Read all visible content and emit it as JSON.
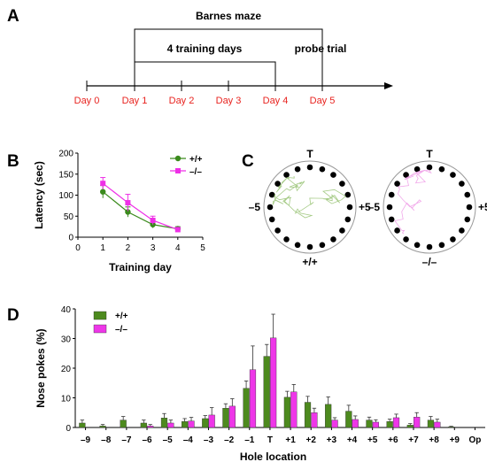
{
  "panels": [
    "A",
    "B",
    "C",
    "D"
  ],
  "timeline": {
    "days": [
      "Day 0",
      "Day 1",
      "Day 2",
      "Day 3",
      "Day 4",
      "Day 5"
    ],
    "brackets": {
      "barnes": "Barnes maze",
      "training": "4 training days",
      "probe": "probe trial"
    }
  },
  "maze": {
    "target": "T",
    "minus5": "–5",
    "plus5": "+5",
    "labels": [
      "+/+",
      "–/–"
    ],
    "colors": [
      "#9cc57a",
      "#f0a0e8"
    ]
  },
  "chart_data": [
    {
      "type": "line",
      "xlabel": "Training day",
      "ylabel": "Latency (sec)",
      "xlim": [
        0,
        5
      ],
      "ylim": [
        0,
        200
      ],
      "xticks": [
        0,
        1,
        2,
        3,
        4,
        5
      ],
      "yticks": [
        0,
        50,
        100,
        150,
        200
      ],
      "legend_position": "top-right",
      "x": [
        1,
        2,
        3,
        4
      ],
      "series": [
        {
          "name": "+/+",
          "color": "#3a8a1c",
          "marker": "circle",
          "values": [
            108,
            60,
            30,
            20
          ],
          "errors": [
            15,
            12,
            8,
            5
          ]
        },
        {
          "name": "–/–",
          "color": "#ee2fe6",
          "marker": "square",
          "values": [
            128,
            82,
            40,
            18
          ],
          "errors": [
            14,
            20,
            10,
            4
          ]
        }
      ]
    },
    {
      "type": "bar",
      "xlabel": "Hole location",
      "ylabel": "Nose pokes (%)",
      "ylim": [
        0,
        40
      ],
      "yticks": [
        0,
        10,
        20,
        30,
        40
      ],
      "legend_position": "top-left",
      "categories": [
        "–9",
        "–8",
        "–7",
        "–6",
        "–5",
        "–4",
        "–3",
        "–2",
        "–1",
        "T",
        "+1",
        "+2",
        "+3",
        "+4",
        "+5",
        "+6",
        "+7",
        "+8",
        "+9",
        "Op"
      ],
      "series": [
        {
          "name": "+/+",
          "color": "#4d8a1e",
          "values": [
            1.5,
            0.5,
            2.5,
            1.5,
            3.2,
            2.0,
            3.0,
            6.5,
            13.2,
            24.0,
            10.2,
            8.5,
            7.8,
            5.5,
            2.5,
            2.0,
            0.8,
            2.5,
            0.2,
            0
          ],
          "errors": [
            1,
            0.5,
            1.2,
            1,
            1.5,
            1,
            1,
            1.5,
            2.5,
            4,
            2,
            2,
            2.5,
            2,
            1,
            0.8,
            0.5,
            1.2,
            0.2,
            0
          ]
        },
        {
          "name": "–/–",
          "color": "#ee36e8",
          "values": [
            0,
            0,
            0,
            0.5,
            1.5,
            2.2,
            4.2,
            7.2,
            19.5,
            30.2,
            12.0,
            5.0,
            2.5,
            2.7,
            1.8,
            3.3,
            3.5,
            1.8,
            0,
            0
          ],
          "errors": [
            0,
            0,
            0,
            0.5,
            1,
            1.2,
            2.5,
            2.5,
            8,
            8,
            2.5,
            1.5,
            0.8,
            1.2,
            0.8,
            1.2,
            1.5,
            1,
            0,
            0
          ]
        }
      ]
    }
  ]
}
